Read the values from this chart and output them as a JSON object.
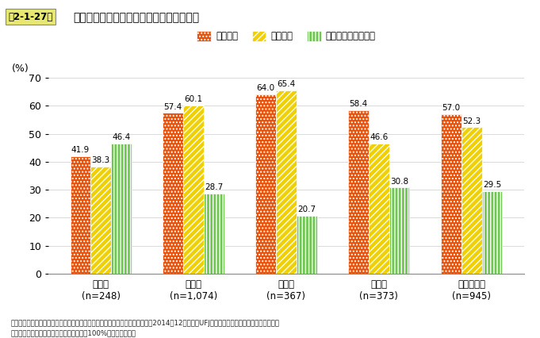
{
  "title_box": "第2-1-27図",
  "title_main": "業種別、市場別に見た販路開拓の取組状況",
  "categories": [
    "建設業\n(n=248)",
    "製造業\n(n=1,074)",
    "卸売業\n(n=367)",
    "小売業\n(n=373)",
    "サービス業\n(n=945)"
  ],
  "legend_labels": [
    "既存市場",
    "新規市場",
    "販路開拓の取組なし"
  ],
  "series": [
    [
      41.9,
      57.4,
      64.0,
      58.4,
      57.0
    ],
    [
      38.3,
      60.1,
      65.4,
      46.6,
      52.3
    ],
    [
      46.4,
      28.7,
      20.7,
      30.8,
      29.5
    ]
  ],
  "bar_colors": [
    "#e8520a",
    "#f0d000",
    "#6ec850"
  ],
  "ylabel": "(%)",
  "ylim": [
    0,
    70
  ],
  "yticks": [
    0,
    10,
    20,
    30,
    40,
    50,
    60,
    70
  ],
  "source_line1": "資料：中小企業庁委託「「市場開拓」と「新たな取り組み」に関する調査」（2014年12月、三菱UFJリサーチ＆コンサルティング（株））",
  "source_line2": "（注）　複数回答のため、合計は必ずしも100%にはならない。",
  "background_color": "#ffffff",
  "bar_width": 0.22
}
